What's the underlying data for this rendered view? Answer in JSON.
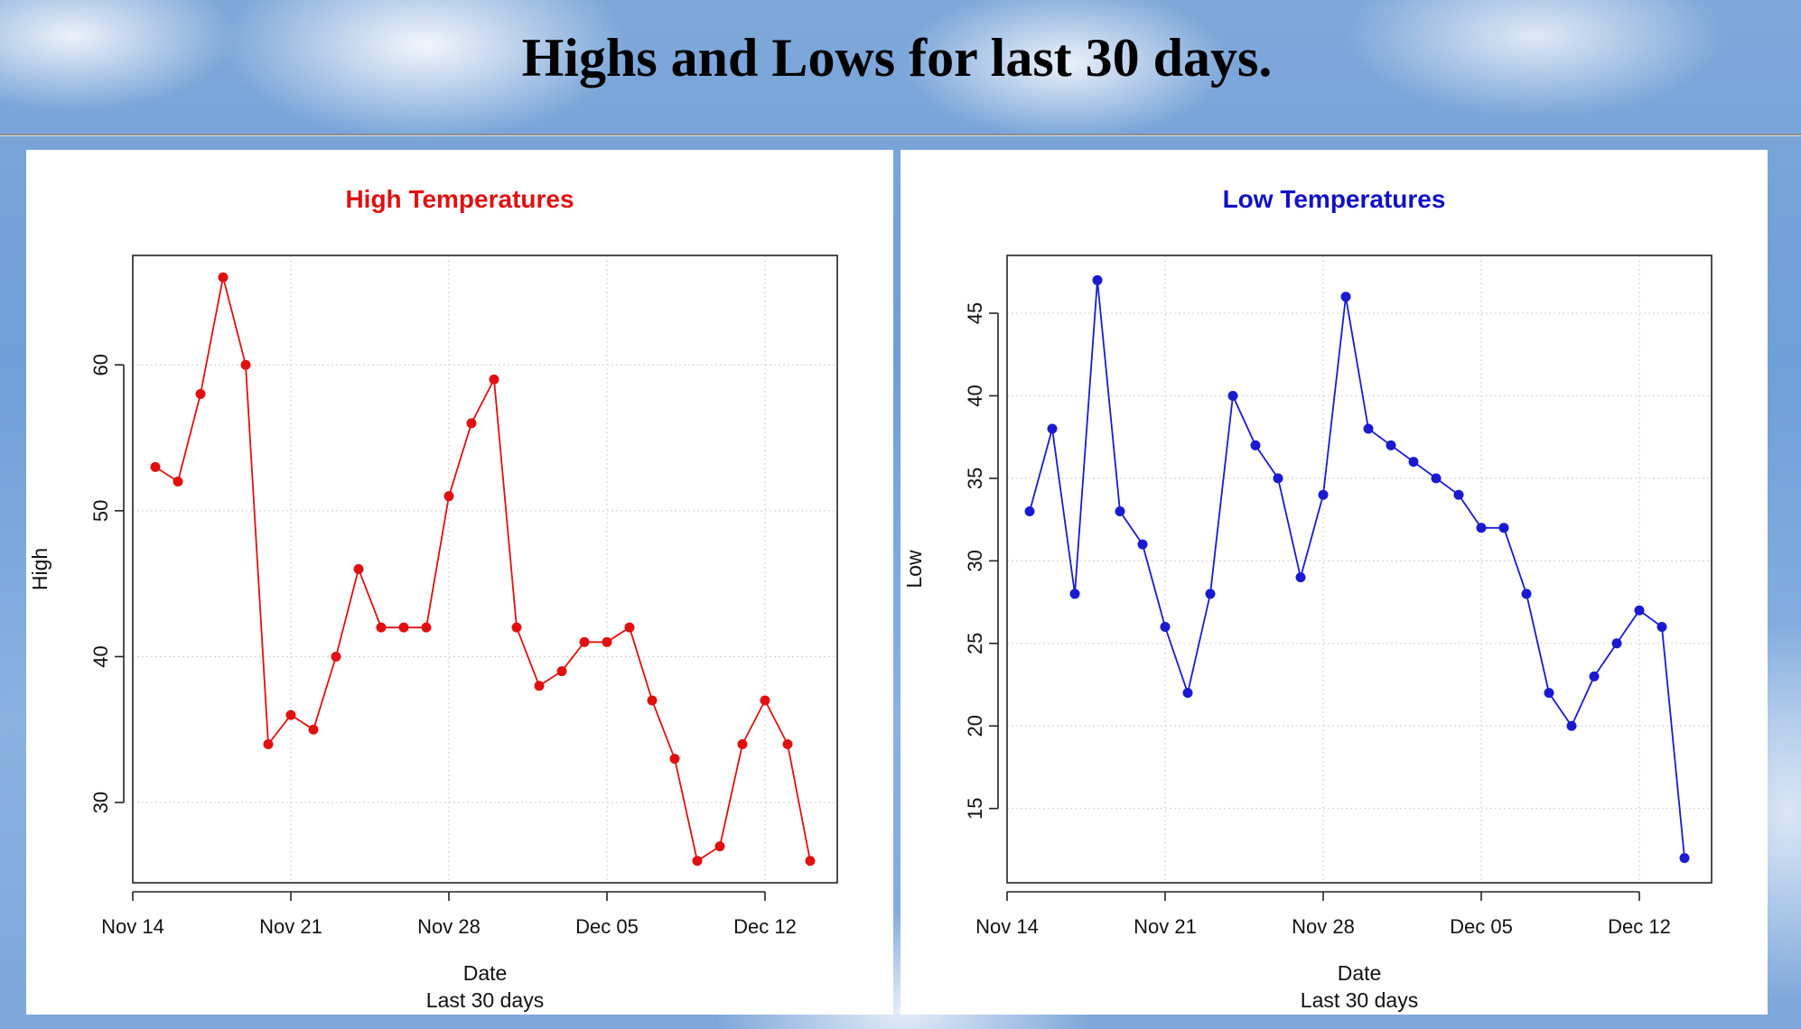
{
  "page": {
    "title": "Highs and Lows for last 30 days."
  },
  "chart_data": [
    {
      "type": "line",
      "title": "High Temperatures",
      "title_color": "#e01010",
      "line_color": "#e01010",
      "xlabel": "Date",
      "subtitle": "Last 30 days",
      "ylabel": "High",
      "x_ticks": [
        "Nov 14",
        "Nov 21",
        "Nov 28",
        "Dec 05",
        "Dec 12"
      ],
      "y_ticks": [
        30,
        40,
        50,
        60
      ],
      "ylim": [
        24.5,
        67.5
      ],
      "grid": true,
      "x": [
        "Nov 15",
        "Nov 16",
        "Nov 17",
        "Nov 18",
        "Nov 19",
        "Nov 20",
        "Nov 21",
        "Nov 22",
        "Nov 23",
        "Nov 24",
        "Nov 25",
        "Nov 26",
        "Nov 27",
        "Nov 28",
        "Nov 29",
        "Nov 30",
        "Dec 01",
        "Dec 02",
        "Dec 03",
        "Dec 04",
        "Dec 05",
        "Dec 06",
        "Dec 07",
        "Dec 08",
        "Dec 09",
        "Dec 10",
        "Dec 11",
        "Dec 12",
        "Dec 13",
        "Dec 14"
      ],
      "series": [
        {
          "name": "High",
          "values": [
            53,
            52,
            58,
            66,
            60,
            34,
            36,
            35,
            40,
            46,
            42,
            42,
            42,
            51,
            56,
            59,
            42,
            38,
            39,
            41,
            41,
            42,
            37,
            33,
            26,
            27,
            34,
            37,
            34,
            26
          ]
        }
      ]
    },
    {
      "type": "line",
      "title": "Low Temperatures",
      "title_color": "#1010c8",
      "line_color": "#1a1ad0",
      "xlabel": "Date",
      "subtitle": "Last 30 days",
      "ylabel": "Low",
      "x_ticks": [
        "Nov 14",
        "Nov 21",
        "Nov 28",
        "Dec 05",
        "Dec 12"
      ],
      "y_ticks": [
        15,
        20,
        25,
        30,
        35,
        40,
        45
      ],
      "ylim": [
        10.5,
        48.5
      ],
      "grid": true,
      "x": [
        "Nov 15",
        "Nov 16",
        "Nov 17",
        "Nov 18",
        "Nov 19",
        "Nov 20",
        "Nov 21",
        "Nov 22",
        "Nov 23",
        "Nov 24",
        "Nov 25",
        "Nov 26",
        "Nov 27",
        "Nov 28",
        "Nov 29",
        "Nov 30",
        "Dec 01",
        "Dec 02",
        "Dec 03",
        "Dec 04",
        "Dec 05",
        "Dec 06",
        "Dec 07",
        "Dec 08",
        "Dec 09",
        "Dec 10",
        "Dec 11",
        "Dec 12",
        "Dec 13",
        "Dec 14"
      ],
      "series": [
        {
          "name": "Low",
          "values": [
            33,
            38,
            28,
            47,
            33,
            31,
            26,
            22,
            28,
            40,
            37,
            35,
            29,
            34,
            46,
            38,
            37,
            36,
            35,
            34,
            32,
            32,
            28,
            22,
            20,
            23,
            25,
            27,
            26,
            12
          ]
        }
      ]
    }
  ]
}
